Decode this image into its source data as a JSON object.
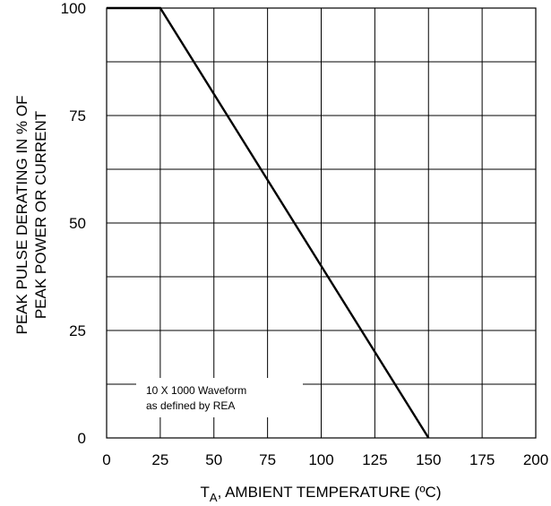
{
  "chart_data": {
    "type": "line",
    "title": "",
    "xlabel": {
      "base": "T",
      "subscript": "A",
      "rest": ", AMBIENT TEMPERATURE (ºC)"
    },
    "ylabel": {
      "line1": "PEAK PULSE DERATING IN % OF",
      "line2": "PEAK POWER OR CURRENT"
    },
    "xlim": [
      0,
      200
    ],
    "ylim": [
      0,
      100
    ],
    "x_ticks": [
      0,
      25,
      50,
      75,
      100,
      125,
      150,
      175,
      200
    ],
    "x_tick_labels": [
      "0",
      "25",
      "50",
      "75",
      "100",
      "125",
      "150",
      "175",
      "200"
    ],
    "y_ticks": [
      0,
      25,
      50,
      75,
      100
    ],
    "y_tick_labels": [
      "0",
      "25",
      "50",
      "75",
      "100"
    ],
    "x_grid_step": 25,
    "y_grid_step": 12.5,
    "grid": true,
    "legend": "none",
    "series": [
      {
        "x": [
          0,
          25,
          150
        ],
        "y": [
          100,
          100,
          0
        ]
      }
    ],
    "annotation": {
      "line1": "10 X 1000 Waveform",
      "line2": "as defined by REA"
    }
  }
}
